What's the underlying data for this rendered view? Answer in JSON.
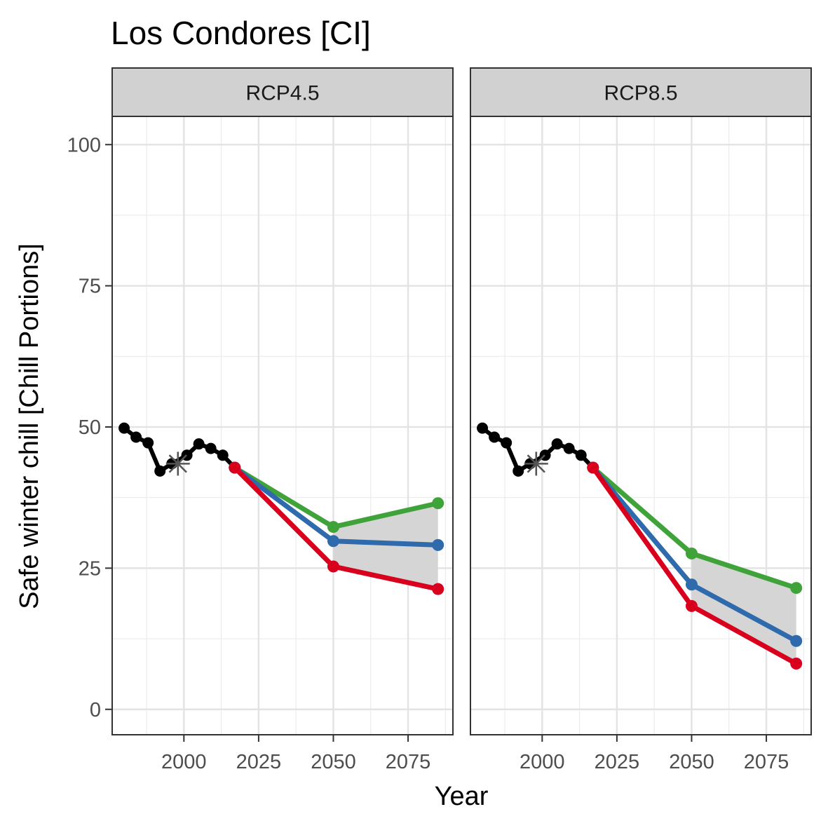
{
  "chart_data": {
    "type": "line",
    "title": "Los Condores [CI]",
    "xlabel": "Year",
    "ylabel": "Safe winter chill [Chill Portions]",
    "xlim": [
      1976,
      2090
    ],
    "ylim": [
      -4.5,
      105
    ],
    "x_ticks": [
      2000,
      2025,
      2050,
      2075
    ],
    "y_ticks": [
      0,
      25,
      50,
      75,
      100
    ],
    "grid": true,
    "legend": "none",
    "colors": {
      "historic": "#000000",
      "upper": "#3fa33a",
      "median": "#2f6aac",
      "lower": "#d9001e",
      "band": "#d3d3d3",
      "baseline_marker": "#555555"
    },
    "historic": {
      "x": [
        1980,
        1984,
        1988,
        1992,
        1996,
        2001,
        2005,
        2009,
        2013,
        2017
      ],
      "y": [
        49.8,
        48.2,
        47.2,
        42.2,
        43.5,
        45.0,
        47.0,
        46.2,
        45.0,
        42.8
      ]
    },
    "baseline_marker": {
      "x": 1998,
      "y": 43.5
    },
    "panels": [
      {
        "label": "RCP4.5",
        "x": [
          2017,
          2050,
          2085
        ],
        "series": [
          {
            "key": "upper",
            "values": [
              42.8,
              32.3,
              36.5
            ]
          },
          {
            "key": "median",
            "values": [
              42.8,
              29.8,
              29.1
            ]
          },
          {
            "key": "lower",
            "values": [
              42.8,
              25.3,
              21.3
            ]
          }
        ]
      },
      {
        "label": "RCP8.5",
        "x": [
          2017,
          2050,
          2085
        ],
        "series": [
          {
            "key": "upper",
            "values": [
              42.8,
              27.6,
              21.5
            ]
          },
          {
            "key": "median",
            "values": [
              42.8,
              22.1,
              12.1
            ]
          },
          {
            "key": "lower",
            "values": [
              42.8,
              18.3,
              8.1
            ]
          }
        ]
      }
    ]
  }
}
